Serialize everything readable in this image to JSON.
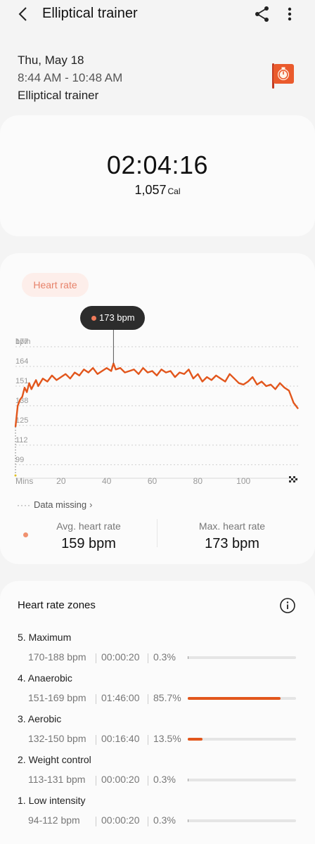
{
  "app": {
    "title": "Elliptical trainer"
  },
  "session": {
    "date": "Thu, May 18",
    "time_range": "8:44 AM - 10:48 AM",
    "workout_type": "Elliptical trainer"
  },
  "summary": {
    "duration": "02:04:16",
    "calories": "1,057",
    "calories_unit": "Cal"
  },
  "heart_rate": {
    "pill_label": "Heart rate",
    "tooltip": "173 bpm",
    "data_missing_label": "Data missing",
    "avg_label": "Avg. heart rate",
    "avg_value": "159 bpm",
    "max_label": "Max. heart rate",
    "max_value": "173 bpm"
  },
  "chart_data": {
    "type": "line",
    "ylabel": "bpm",
    "xlabel": "Mins",
    "y_ticks": [
      177,
      164,
      151,
      138,
      125,
      112,
      99
    ],
    "ylim": [
      91,
      184
    ],
    "x_ticks": [
      20,
      40,
      60,
      80,
      100
    ],
    "xlim": [
      0,
      124
    ],
    "grid": true,
    "series": [
      {
        "color": "#e2561c",
        "x": [
          0,
          1,
          2,
          3,
          4,
          5,
          6,
          7,
          8,
          9,
          10,
          12,
          14,
          16,
          18,
          20,
          22,
          24,
          26,
          28,
          30,
          32,
          34,
          36,
          38,
          40,
          42,
          43,
          44,
          46,
          48,
          50,
          52,
          54,
          56,
          58,
          60,
          62,
          64,
          66,
          68,
          70,
          72,
          74,
          76,
          78,
          80,
          82,
          84,
          86,
          88,
          90,
          92,
          94,
          96,
          98,
          100,
          102,
          104,
          106,
          108,
          110,
          112,
          114,
          116,
          118,
          120,
          121,
          122,
          123,
          124
        ],
        "y": [
          124,
          138,
          142,
          144,
          150,
          147,
          153,
          149,
          152,
          155,
          151,
          156,
          154,
          158,
          155,
          157,
          159,
          156,
          160,
          158,
          162,
          160,
          163,
          159,
          161,
          163,
          161,
          166,
          162,
          163,
          160,
          161,
          162,
          159,
          163,
          160,
          161,
          158,
          162,
          160,
          161,
          157,
          160,
          159,
          162,
          156,
          159,
          154,
          157,
          155,
          158,
          156,
          154,
          159,
          156,
          153,
          152,
          154,
          157,
          152,
          154,
          151,
          152,
          149,
          153,
          150,
          148,
          144,
          140,
          138,
          136
        ]
      }
    ]
  },
  "zones": {
    "title": "Heart rate zones",
    "items": [
      {
        "name": "5. Maximum",
        "range": "170-188 bpm",
        "time": "00:00:20",
        "percent": "0.3%",
        "fraction": 0.003
      },
      {
        "name": "4. Anaerobic",
        "range": "151-169 bpm",
        "time": "01:46:00",
        "percent": "85.7%",
        "fraction": 0.857
      },
      {
        "name": "3. Aerobic",
        "range": "132-150 bpm",
        "time": "00:16:40",
        "percent": "13.5%",
        "fraction": 0.135
      },
      {
        "name": "2. Weight control",
        "range": "113-131 bpm",
        "time": "00:00:20",
        "percent": "0.3%",
        "fraction": 0.003
      },
      {
        "name": "1. Low intensity",
        "range": "94-112 bpm",
        "time": "00:00:20",
        "percent": "0.3%",
        "fraction": 0.003
      }
    ]
  }
}
